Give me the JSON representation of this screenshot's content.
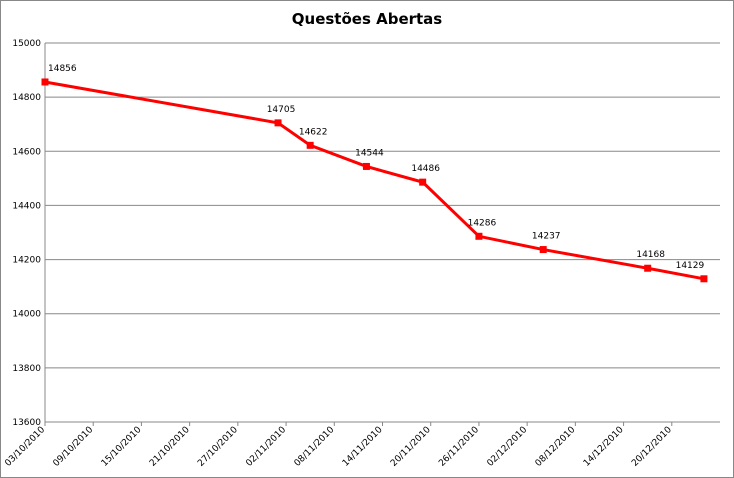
{
  "chart_data": {
    "type": "line",
    "title": "Questões Abertas",
    "x": [
      "03/10/2010",
      "01/11/2010",
      "05/11/2010",
      "12/11/2010",
      "19/11/2010",
      "26/11/2010",
      "04/12/2010",
      "17/12/2010",
      "24/12/2010"
    ],
    "series": [
      {
        "name": "Questões Abertas",
        "color": "#ff0000",
        "values": [
          14856,
          14705,
          14622,
          14544,
          14486,
          14286,
          14237,
          14168,
          14129
        ]
      }
    ],
    "xlim": [
      "03/10/2010",
      "26/12/2010"
    ],
    "xticks": [
      "03/10/2010",
      "09/10/2010",
      "15/10/2010",
      "21/10/2010",
      "27/10/2010",
      "02/11/2010",
      "08/11/2010",
      "14/11/2010",
      "20/11/2010",
      "26/11/2010",
      "02/12/2010",
      "08/12/2010",
      "14/12/2010",
      "20/12/2010"
    ],
    "ylim": [
      13600,
      15000
    ],
    "yticks": [
      13600,
      13800,
      14000,
      14200,
      14400,
      14600,
      14800,
      15000
    ],
    "grid": true
  }
}
